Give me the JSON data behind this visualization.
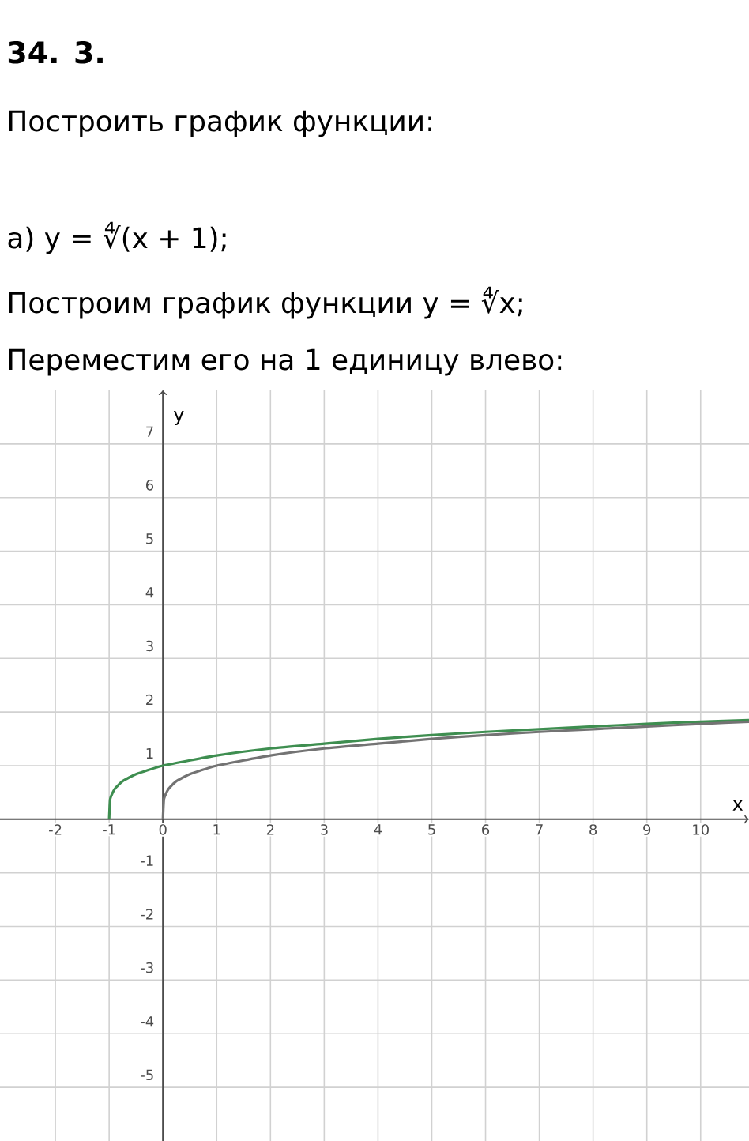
{
  "chart_data": {
    "type": "line",
    "title": "34. 3.",
    "subtitle": "Построить график функции:",
    "annotations": [
      "а) y = ∜(x + 1);",
      "Построим график функции y = ∜x;",
      "Переместим его на 1 единицу влево:"
    ],
    "xlabel": "x",
    "ylabel": "y",
    "xlim": [
      -3.03,
      10.9
    ],
    "ylim": [
      -6,
      8
    ],
    "xticks": [
      -2,
      -1,
      0,
      1,
      2,
      3,
      4,
      5,
      6,
      7,
      8,
      9,
      10
    ],
    "yticks": [
      -5,
      -4,
      -3,
      -2,
      -1,
      1,
      2,
      3,
      4,
      5,
      6,
      7
    ],
    "grid": true,
    "marker": "none",
    "line_style": "solid",
    "series": [
      {
        "color": "#3e8e50",
        "x": [
          -1,
          -0.98,
          -0.9,
          -0.75,
          -0.5,
          0,
          1,
          2,
          3,
          4,
          5,
          6,
          7,
          8,
          9,
          10,
          10.9
        ],
        "values": [
          0,
          0.38,
          0.56,
          0.71,
          0.84,
          1,
          1.19,
          1.32,
          1.41,
          1.5,
          1.57,
          1.63,
          1.68,
          1.73,
          1.78,
          1.82,
          1.85
        ]
      },
      {
        "color": "#737373",
        "x": [
          0,
          0.02,
          0.1,
          0.25,
          0.5,
          1,
          2,
          3,
          4,
          5,
          6,
          7,
          8,
          9,
          10,
          10.9
        ],
        "values": [
          0,
          0.38,
          0.56,
          0.71,
          0.84,
          1,
          1.19,
          1.32,
          1.41,
          1.5,
          1.57,
          1.63,
          1.68,
          1.73,
          1.78,
          1.82
        ]
      }
    ]
  }
}
